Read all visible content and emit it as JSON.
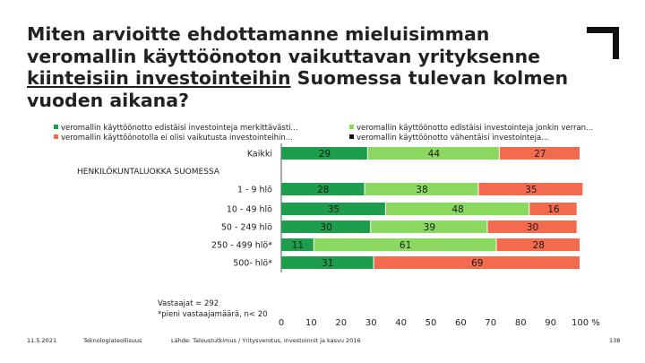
{
  "title": {
    "part1": "Miten arvioitte ehdottamanne mieluisimman veromallin käyttöönoton vaikuttavan yrityksenne ",
    "underlined": "kiinteisiin investointeihin",
    "part2": " Suomessa tulevan kolmen vuoden aikana?"
  },
  "colors": {
    "dark_green": "#1e9e4c",
    "light_green": "#8ad85f",
    "orange": "#f26b4f",
    "black": "#111111"
  },
  "icons": {
    "corner_logo": "corner-bracket-icon"
  },
  "note": {
    "line1": "Vastaajat = 292",
    "line2": "*pieni vastaajamäärä, n< 20"
  },
  "footer": {
    "date": "11.5.2021",
    "org": "Teknologiateollisuus",
    "source": "Lähde: Taloustutkimus / Yritysverotus, investoinnit ja kasvu 2016",
    "page": "138"
  },
  "chart_data": {
    "type": "bar",
    "orientation": "horizontal",
    "stacked": true,
    "legend_position": "top",
    "categories": [
      "Kaikki",
      "1 - 9 hlö",
      "10 - 49 hlö",
      "50 - 249 hlö",
      "250 - 499 hlö*",
      "500- hlö*"
    ],
    "group_label": "HENKILÖKUNTALUOKKA SUOMESSA",
    "series": [
      {
        "name": "veromallin käyttöönotto edistäisi investointeja merkittävästi...",
        "color": "#1e9e4c",
        "values": [
          29,
          28,
          35,
          30,
          11,
          31
        ]
      },
      {
        "name": "veromallin käyttöönotto edistäisi investointeja jonkin verran...",
        "color": "#8ad85f",
        "values": [
          44,
          38,
          48,
          39,
          61,
          0
        ]
      },
      {
        "name": "veromallin käyttöönotolla ei olisi vaikutusta investointeihin...",
        "color": "#f26b4f",
        "values": [
          27,
          35,
          16,
          30,
          28,
          69
        ]
      },
      {
        "name": "veromallin käyttöönotto vähentäisi investointeja...",
        "color": "#111111",
        "values": [
          0,
          0,
          0,
          0,
          0,
          0
        ]
      }
    ],
    "x_ticks": [
      "0",
      "10",
      "20",
      "30",
      "40",
      "50",
      "60",
      "70",
      "80",
      "90",
      "100 %"
    ],
    "xlim": [
      0,
      100
    ],
    "grid": false
  }
}
